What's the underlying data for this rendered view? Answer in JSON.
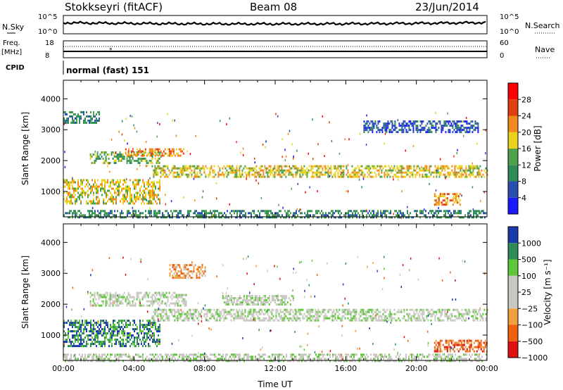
{
  "header": {
    "station": "Stokkseyri (fitACF)",
    "beam": "Beam 08",
    "date": "23/Jun/2014"
  },
  "side_labels": {
    "nsky": "N.Sky",
    "freq_line1": "Freq.",
    "freq_line2": "[MHz]",
    "cpid": "CPID",
    "nsearch": "N.Search",
    "nave": "Nave",
    "cpid_value": "normal (fast) 151"
  },
  "small_axes": {
    "noise_left_top": "10^5",
    "noise_left_bottom": "10^0",
    "noise_right_top": "10^5",
    "noise_right_bottom": "10^0",
    "freq_left_top": "18",
    "freq_left_bottom": "8",
    "nave_right_top": "60",
    "nave_right_bottom": "0"
  },
  "chart_data": [
    {
      "type": "heatmap",
      "panel": "power",
      "ylabel": "Slant Range [km]",
      "xlabel": "",
      "x_ticks": [
        "00:00",
        "04:00",
        "08:00",
        "12:00",
        "16:00",
        "20:00",
        "00:00"
      ],
      "xlim_hours": [
        0,
        24
      ],
      "y_ticks": [
        1000,
        2000,
        3000,
        4000
      ],
      "ylim": [
        180,
        4600
      ],
      "colorbar": {
        "label": "Power [dB]",
        "ticks": [
          "4",
          "8",
          "12",
          "16",
          "20",
          "24",
          "28"
        ],
        "colors": [
          "#1a1aff",
          "#2a4fb0",
          "#2f8b5a",
          "#4ea24a",
          "#e8d21c",
          "#f08a1c",
          "#e04010",
          "#ff0000"
        ]
      },
      "echo_bands": [
        {
          "t0": 0.0,
          "t1": 5.5,
          "r0": 600,
          "r1": 1400,
          "level": 4
        },
        {
          "t0": 1.5,
          "t1": 5.5,
          "r0": 1950,
          "r1": 2300,
          "level": 3
        },
        {
          "t0": 3.5,
          "t1": 6.8,
          "r0": 2150,
          "r1": 2400,
          "level": 5
        },
        {
          "t0": 5.0,
          "t1": 24.0,
          "r0": 1450,
          "r1": 1850,
          "level": 4
        },
        {
          "t0": 0.0,
          "t1": 24.0,
          "r0": 180,
          "r1": 400,
          "level": 2
        },
        {
          "t0": 17.0,
          "t1": 23.5,
          "r0": 2950,
          "r1": 3300,
          "level": 1
        },
        {
          "t0": 21.0,
          "t1": 22.5,
          "r0": 600,
          "r1": 950,
          "level": 5
        },
        {
          "t0": 0.0,
          "t1": 2.0,
          "r0": 3200,
          "r1": 3600,
          "level": 2
        }
      ]
    },
    {
      "type": "heatmap",
      "panel": "velocity",
      "ylabel": "Slant Range [km]",
      "xlabel": "Time UT",
      "x_ticks": [
        "00:00",
        "04:00",
        "08:00",
        "12:00",
        "16:00",
        "20:00",
        "00:00"
      ],
      "xlim_hours": [
        0,
        24
      ],
      "y_ticks": [
        1000,
        2000,
        3000,
        4000
      ],
      "ylim": [
        180,
        4600
      ],
      "colorbar": {
        "label": "Velocity [m s⁻¹]",
        "ticks": [
          "1000",
          "500",
          "100",
          "25",
          "−25",
          "−100",
          "−500",
          "−1000"
        ],
        "colors": [
          "#1a3aa8",
          "#2f8b5a",
          "#5fc83a",
          "#c8c8c0",
          "#c8c8c0",
          "#f0a040",
          "#f06010",
          "#e01010"
        ]
      },
      "echo_bands": [
        {
          "t0": 0.0,
          "t1": 5.5,
          "r0": 650,
          "r1": 1500,
          "level": 1
        },
        {
          "t0": 1.5,
          "t1": 7.0,
          "r0": 1950,
          "r1": 2400,
          "level": 3
        },
        {
          "t0": 5.0,
          "t1": 24.0,
          "r0": 1450,
          "r1": 1850,
          "level": 3
        },
        {
          "t0": 9.0,
          "t1": 13.0,
          "r0": 2000,
          "r1": 2300,
          "level": 3
        },
        {
          "t0": 6.0,
          "t1": 8.0,
          "r0": 2850,
          "r1": 3300,
          "level": 5
        },
        {
          "t0": 21.0,
          "t1": 24.0,
          "r0": 500,
          "r1": 850,
          "level": 6
        },
        {
          "t0": 0.0,
          "t1": 24.0,
          "r0": 180,
          "r1": 400,
          "level": 3
        }
      ]
    }
  ],
  "colors": {
    "frame": "#000000",
    "empty": "#ffffff",
    "ground_scatter": "#c8c8c0"
  }
}
